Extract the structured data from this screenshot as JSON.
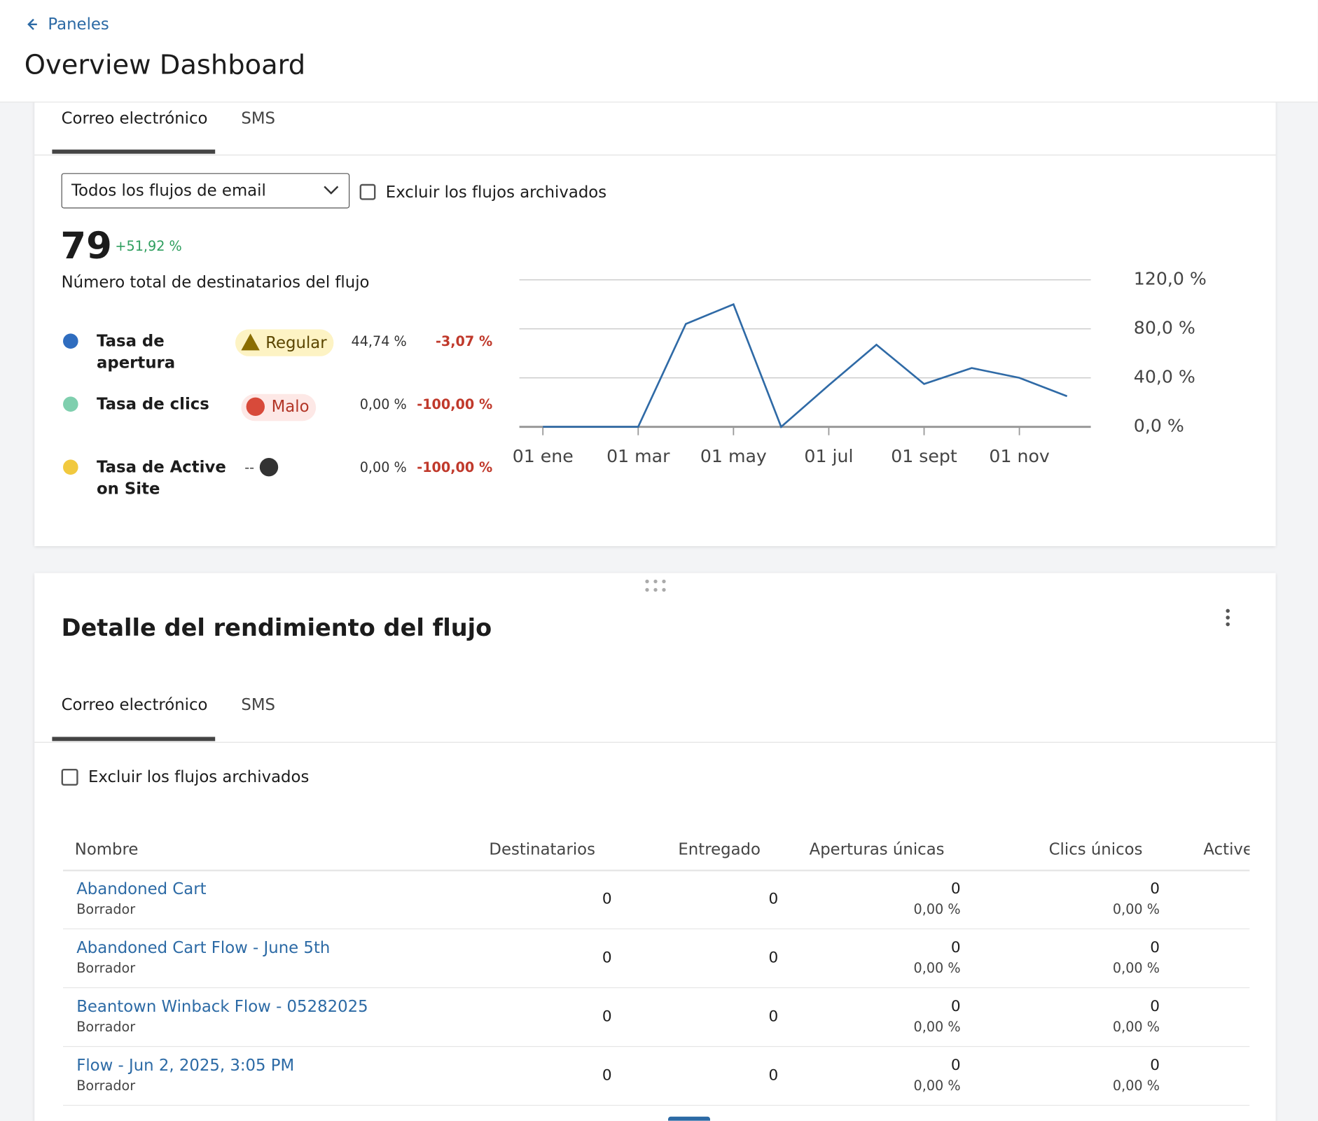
{
  "header": {
    "back_link": "Paneles",
    "title": "Overview Dashboard"
  },
  "panel1": {
    "tabs": [
      "Correo electrónico",
      "SMS"
    ],
    "select": "Todos los flujos de email",
    "checkbox": "Excluir los flujos archivados",
    "total": "79",
    "change": "+51,92 %",
    "total_label": "Número total de destinatarios del flujo",
    "metrics": [
      {
        "name": "Tasa de apertura",
        "color": "#2f6dbf",
        "badge": "Regular",
        "value": "44,74 %",
        "change": "-3,07 %"
      },
      {
        "name": "Tasa de clics",
        "color": "#7fcfae",
        "badge": "Malo",
        "value": "0,00 %",
        "change": "-100,00 %"
      },
      {
        "name": "Tasa de Active on Site",
        "color": "#f1c93f",
        "badge": "--",
        "value": "0,00 %",
        "change": "-100,00 %"
      }
    ]
  },
  "chart_data": {
    "type": "line",
    "categories": [
      "01 ene",
      null,
      "01 mar",
      null,
      "01 may",
      null,
      "01 jul",
      null,
      "01 sept",
      null,
      "01 nov",
      null
    ],
    "values": [
      0,
      0,
      0,
      84,
      100,
      0,
      34,
      67,
      35,
      48,
      40,
      25
    ],
    "color": "#2f6aa6",
    "ylim": [
      0,
      120
    ],
    "yticks": [
      {
        "value": 0,
        "label": "0,0 %"
      },
      {
        "value": 40,
        "label": "40,0 %"
      },
      {
        "value": 80,
        "label": "80,0 %"
      },
      {
        "value": 120,
        "label": "120,0 %"
      }
    ],
    "grid": true
  },
  "panel2": {
    "title": "Detalle del rendimiento del flujo",
    "tabs": [
      "Correo electrónico",
      "SMS"
    ],
    "checkbox": "Excluir los flujos archivados",
    "table": {
      "columns": [
        "Nombre",
        "Destinatarios",
        "Entregado",
        "Aperturas únicas",
        "Clics únicos",
        "Active"
      ],
      "rows": [
        {
          "name": "Abandoned Cart",
          "status": "Borrador",
          "recipients": "0",
          "delivered": "0",
          "opens": "0",
          "opens_rate": "0,00 %",
          "clicks": "0",
          "clicks_rate": "0,00 %"
        },
        {
          "name": "Abandoned Cart Flow - June 5th",
          "status": "Borrador",
          "recipients": "0",
          "delivered": "0",
          "opens": "0",
          "opens_rate": "0,00 %",
          "clicks": "0",
          "clicks_rate": "0,00 %"
        },
        {
          "name": "Beantown Winback Flow - 05282025",
          "status": "Borrador",
          "recipients": "0",
          "delivered": "0",
          "opens": "0",
          "opens_rate": "0,00 %",
          "clicks": "0",
          "clicks_rate": "0,00 %"
        },
        {
          "name": "Flow - Jun 2, 2025, 3:05 PM",
          "status": "Borrador",
          "recipients": "0",
          "delivered": "0",
          "opens": "0",
          "opens_rate": "0,00 %",
          "clicks": "0",
          "clicks_rate": "0,00 %"
        }
      ]
    }
  }
}
